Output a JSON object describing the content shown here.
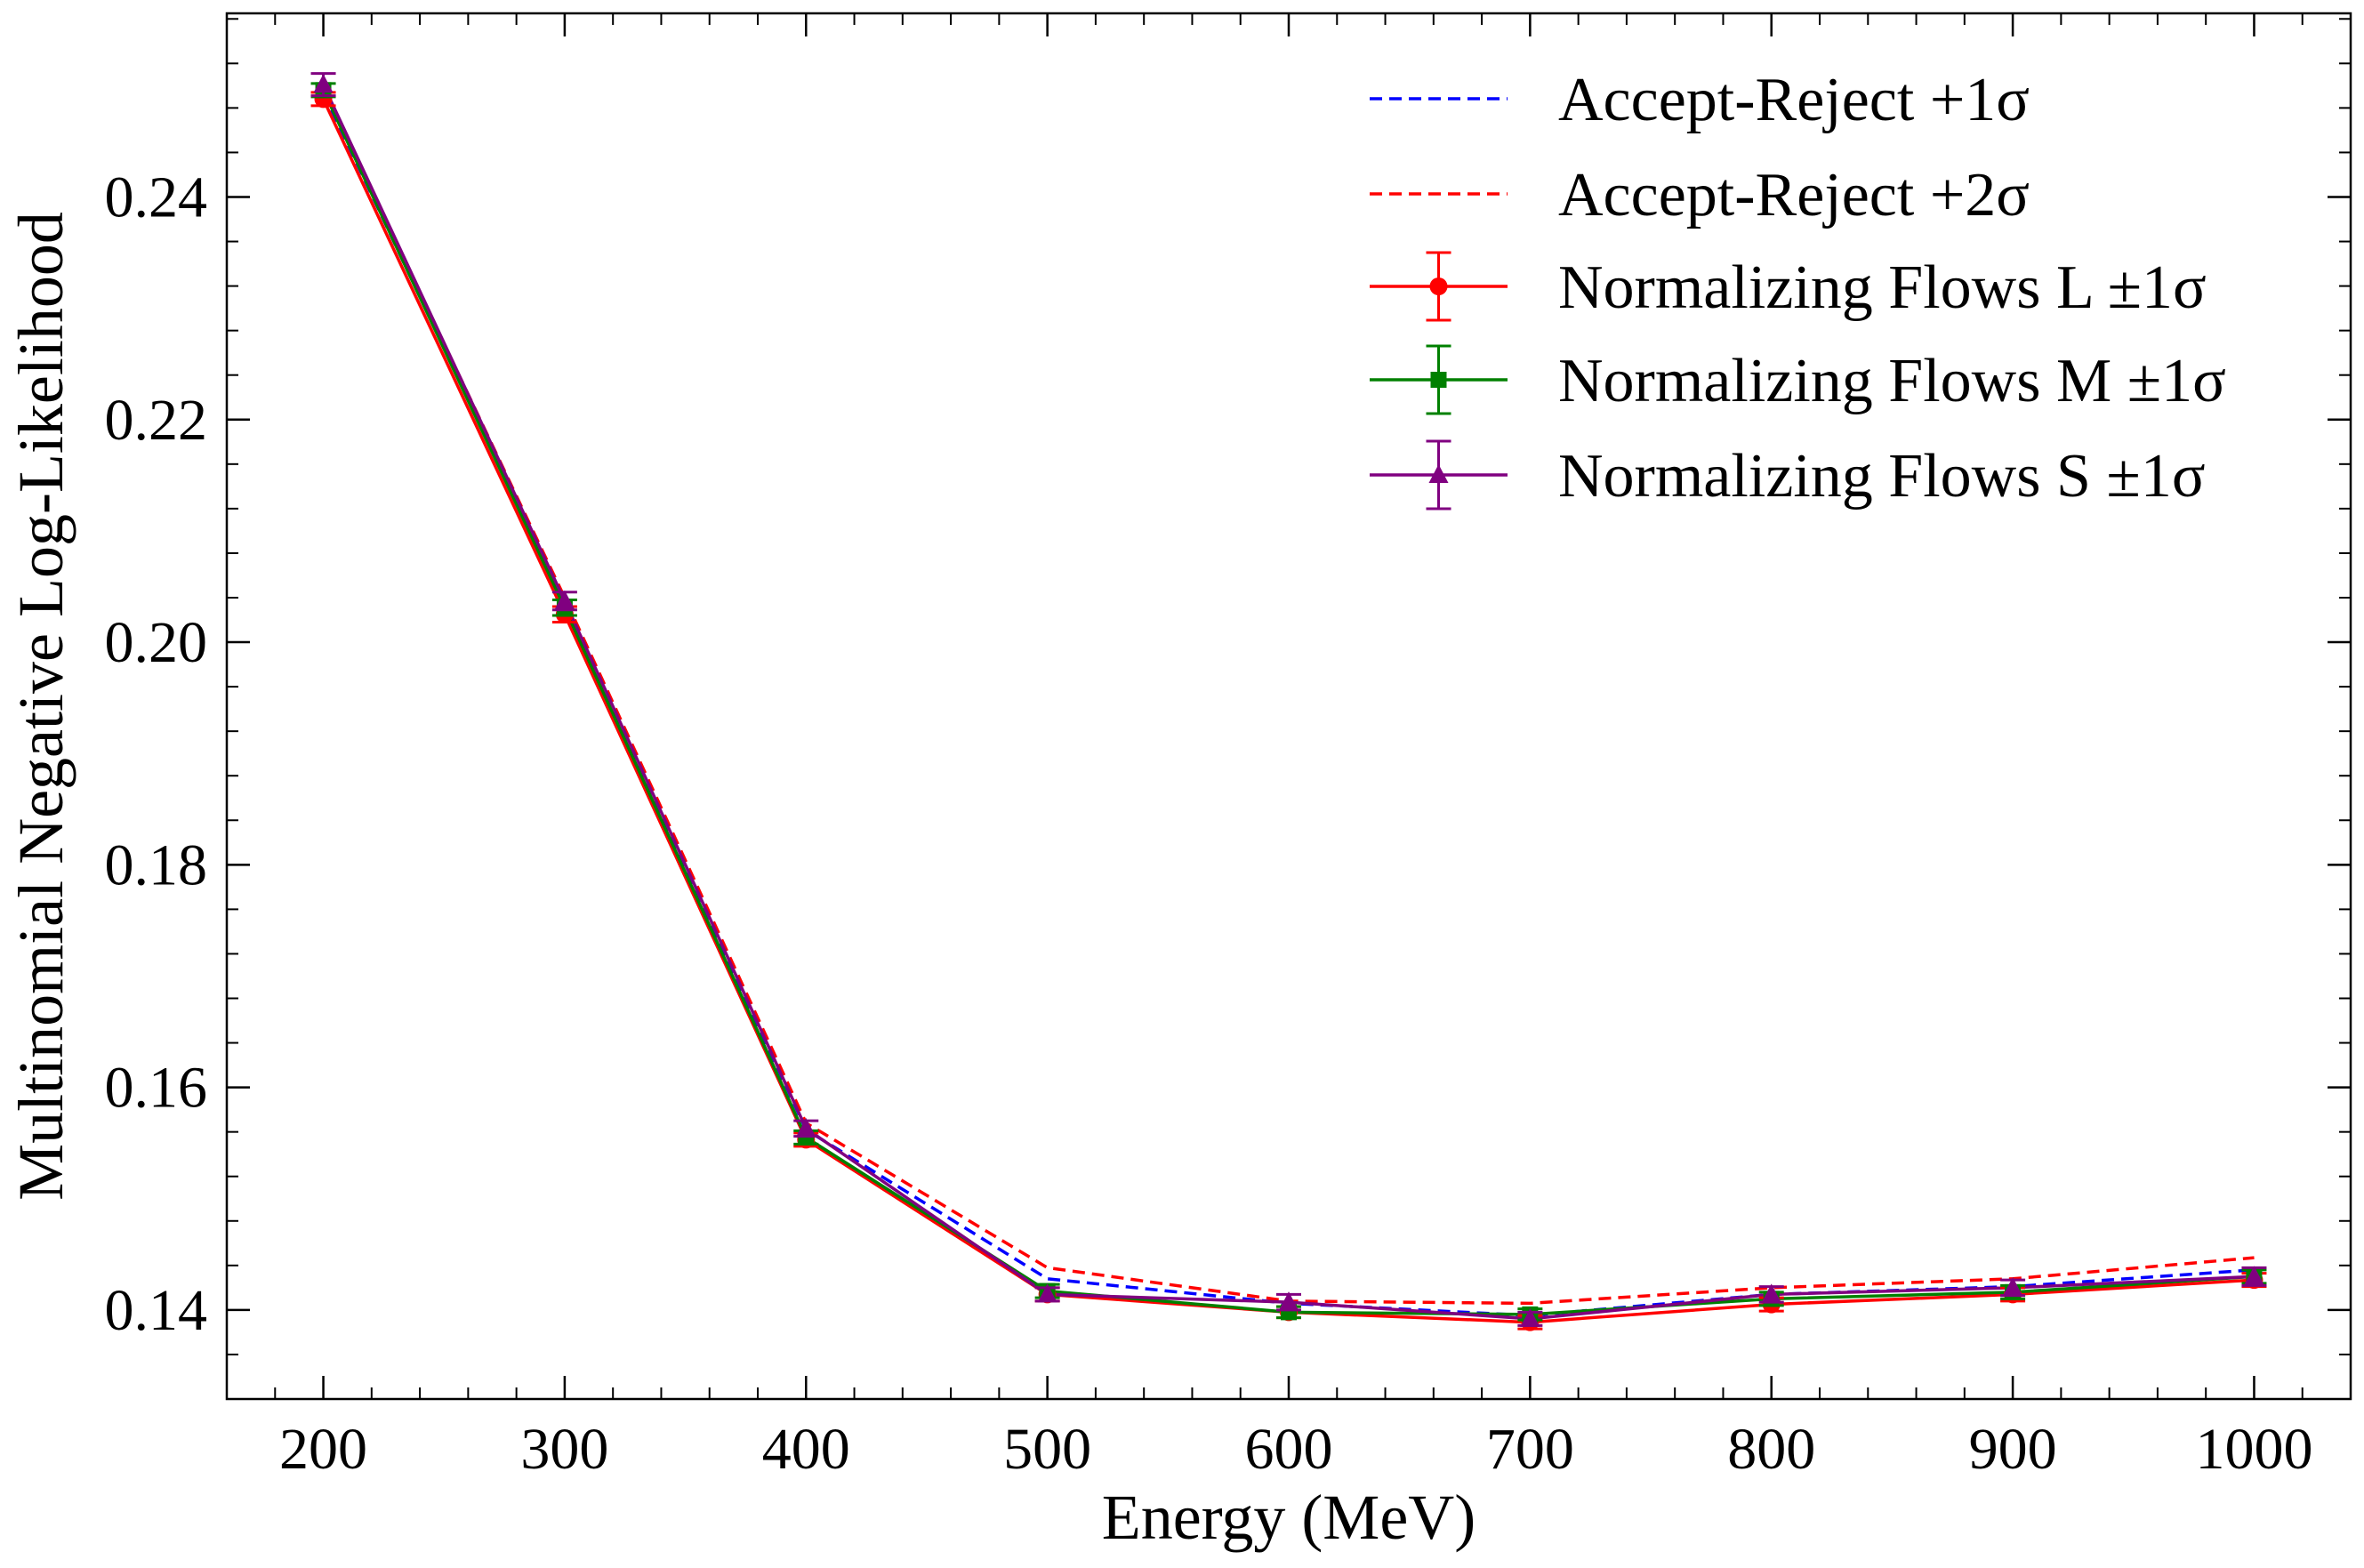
{
  "chart_data": {
    "type": "line",
    "xlabel": "Energy (MeV)",
    "ylabel": "Multinomial Negative Log-Likelihood",
    "xlim": [
      160,
      1040
    ],
    "ylim": [
      0.132,
      0.2565
    ],
    "xticks": [
      200,
      300,
      400,
      500,
      600,
      700,
      800,
      900,
      1000
    ],
    "xtick_labels": [
      "200",
      "300",
      "400",
      "500",
      "600",
      "700",
      "800",
      "900",
      "1000"
    ],
    "yticks": [
      0.14,
      0.16,
      0.18,
      0.2,
      0.22,
      0.24
    ],
    "ytick_labels": [
      "0.14",
      "0.16",
      "0.18",
      "0.20",
      "0.22",
      "0.24"
    ],
    "grid": false,
    "legend_position": "top-right",
    "x": [
      200,
      300,
      400,
      500,
      600,
      700,
      800,
      900,
      1000
    ],
    "series": [
      {
        "name": "Accept-Reject +1σ",
        "style": "dashed",
        "marker": "none",
        "color": "#0000ff",
        "values": [
          0.2494,
          0.2035,
          0.1562,
          0.1428,
          0.1406,
          0.1395,
          0.1414,
          0.1421,
          0.1436
        ],
        "errors": null
      },
      {
        "name": "Accept-Reject +2σ",
        "style": "dashed",
        "marker": "none",
        "color": "#ff0000",
        "values": [
          0.2497,
          0.204,
          0.1568,
          0.1438,
          0.1408,
          0.1406,
          0.142,
          0.1428,
          0.1447
        ],
        "errors": null
      },
      {
        "name": "Normalizing Flows L ±1σ",
        "style": "solid",
        "marker": "circle",
        "color": "#ff0000",
        "values": [
          0.2488,
          0.2025,
          0.1553,
          0.1414,
          0.1398,
          0.1389,
          0.1405,
          0.1414,
          0.1427
        ],
        "errors": [
          0.0006,
          0.0007,
          0.0006,
          0.0006,
          0.0005,
          0.0006,
          0.0006,
          0.0006,
          0.0006
        ]
      },
      {
        "name": "Normalizing Flows M ±1σ",
        "style": "solid",
        "marker": "square",
        "color": "#008000",
        "values": [
          0.2496,
          0.2031,
          0.1555,
          0.1417,
          0.1398,
          0.1396,
          0.141,
          0.1416,
          0.143
        ],
        "errors": [
          0.0006,
          0.0007,
          0.0006,
          0.0006,
          0.0005,
          0.0005,
          0.0006,
          0.0006,
          0.0006
        ]
      },
      {
        "name": "Normalizing Flows S ±1σ",
        "style": "solid",
        "marker": "triangle",
        "color": "#800080",
        "values": [
          0.2501,
          0.2037,
          0.1563,
          0.1414,
          0.1407,
          0.1392,
          0.1414,
          0.142,
          0.143
        ],
        "errors": [
          0.001,
          0.0008,
          0.0007,
          0.0006,
          0.0007,
          0.0006,
          0.0007,
          0.0007,
          0.0008
        ]
      }
    ]
  }
}
